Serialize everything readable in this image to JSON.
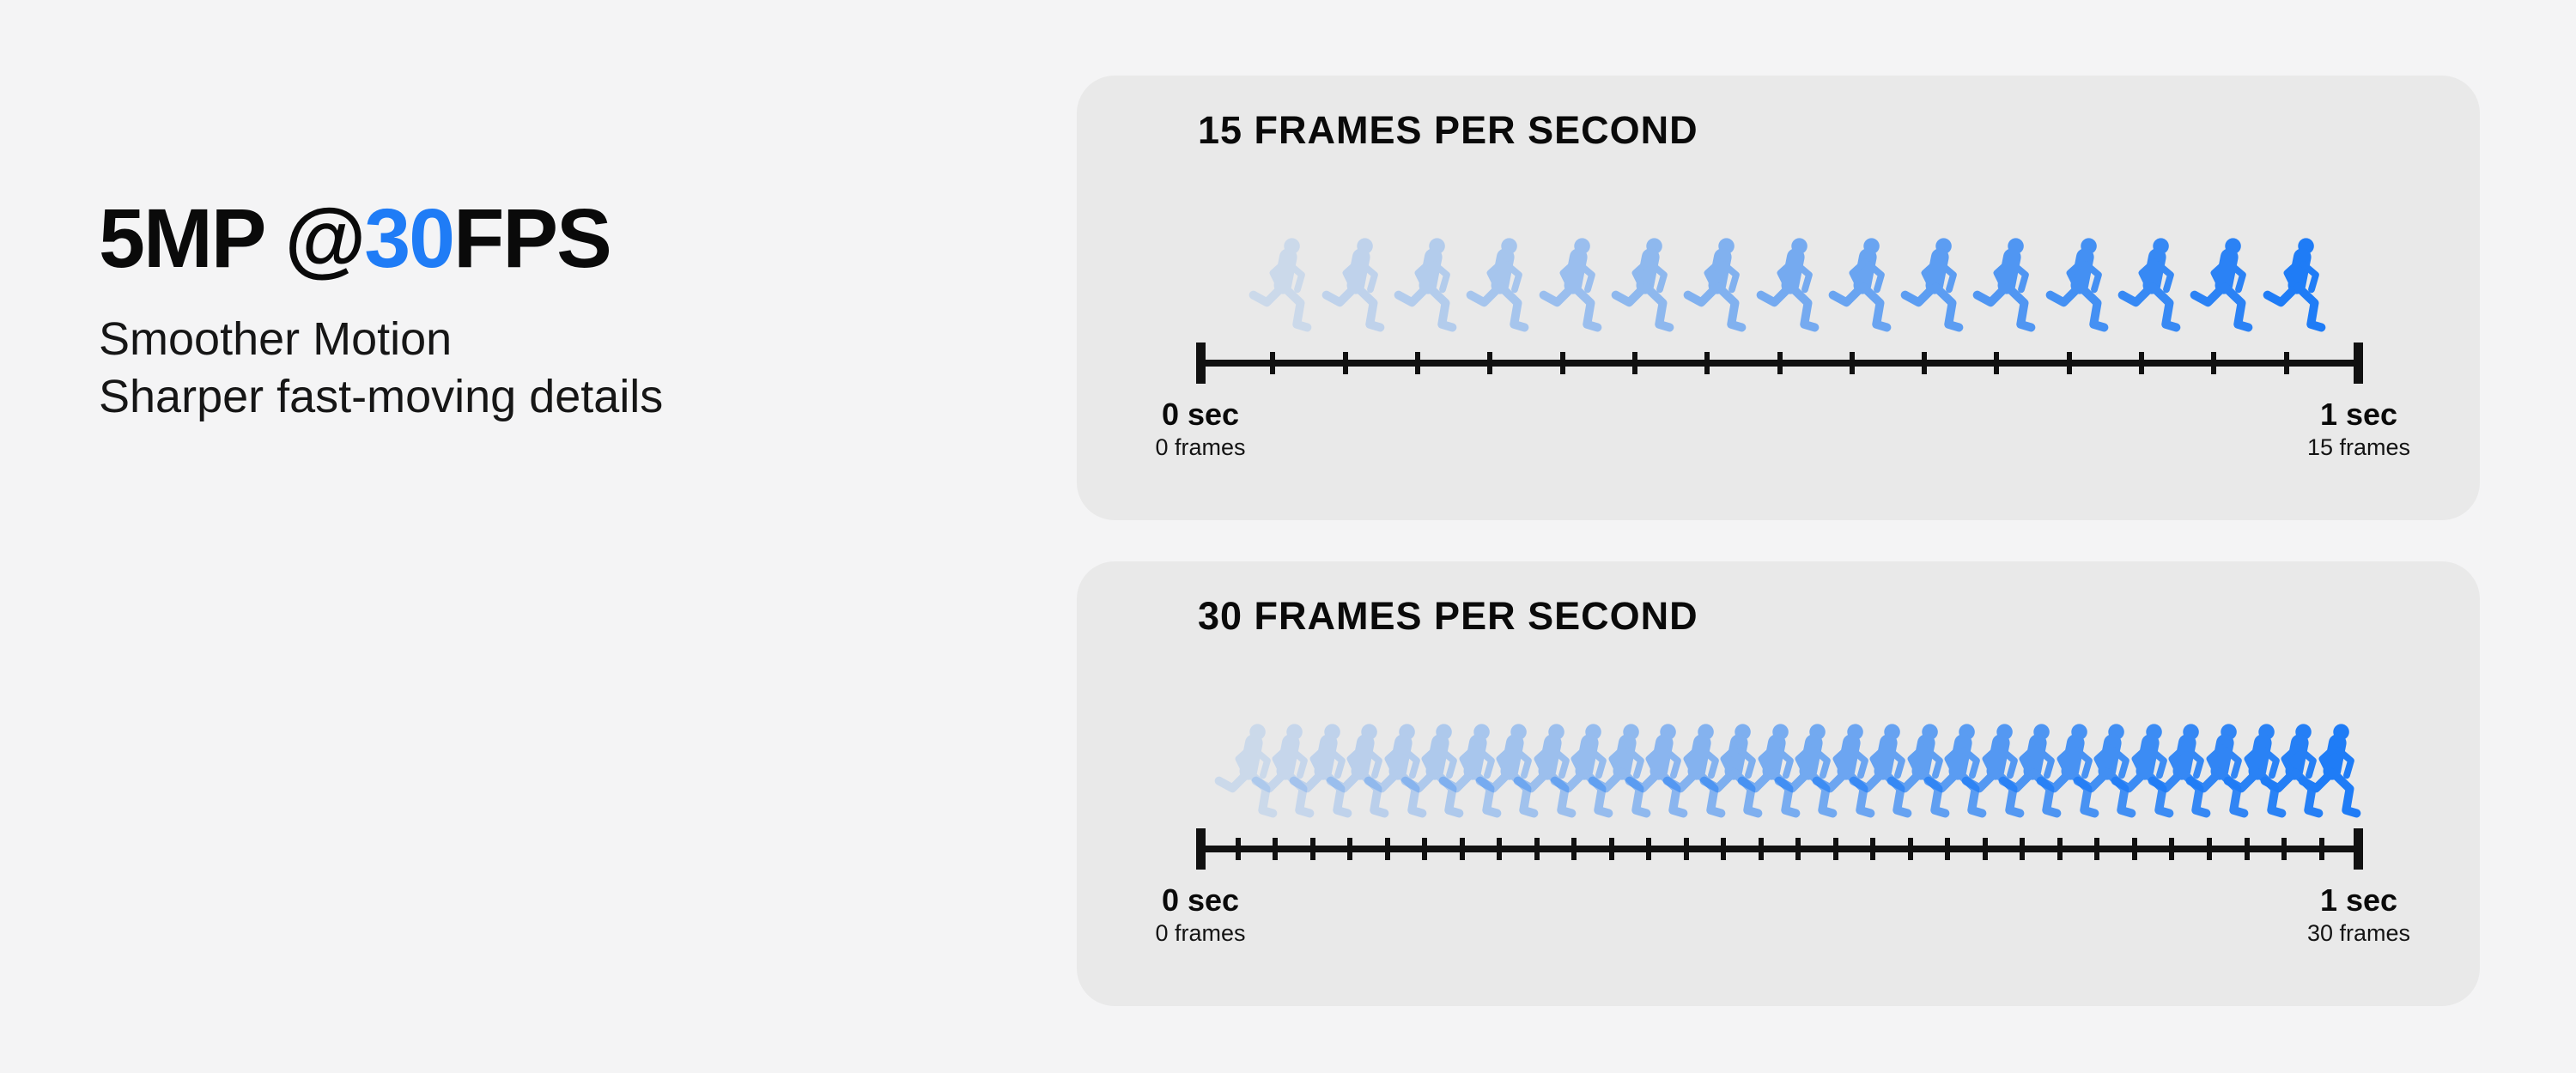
{
  "page": {
    "bg_color": "#f4f4f5",
    "panel_color": "#e9e9e9",
    "accent_color": "#1f7cf6",
    "text_color": "#0a0a0a"
  },
  "headline": {
    "prefix": "5MP @",
    "highlight": "30",
    "suffix": "FPS"
  },
  "subtitle_lines": [
    "Smoother Motion",
    "Sharper fast-moving details"
  ],
  "panels": [
    {
      "title": "15 FRAMES PER SECOND",
      "frames": 15,
      "start": {
        "time": "0 sec",
        "frames": "0 frames"
      },
      "end": {
        "time": "1 sec",
        "frames": "15 frames"
      }
    },
    {
      "title": "30 FRAMES PER SECOND",
      "frames": 30,
      "start": {
        "time": "0 sec",
        "frames": "0 frames"
      },
      "end": {
        "time": "1 sec",
        "frames": "30 frames"
      }
    }
  ],
  "runner_fade": {
    "min_opacity": 0.14,
    "max_opacity": 1.0
  }
}
